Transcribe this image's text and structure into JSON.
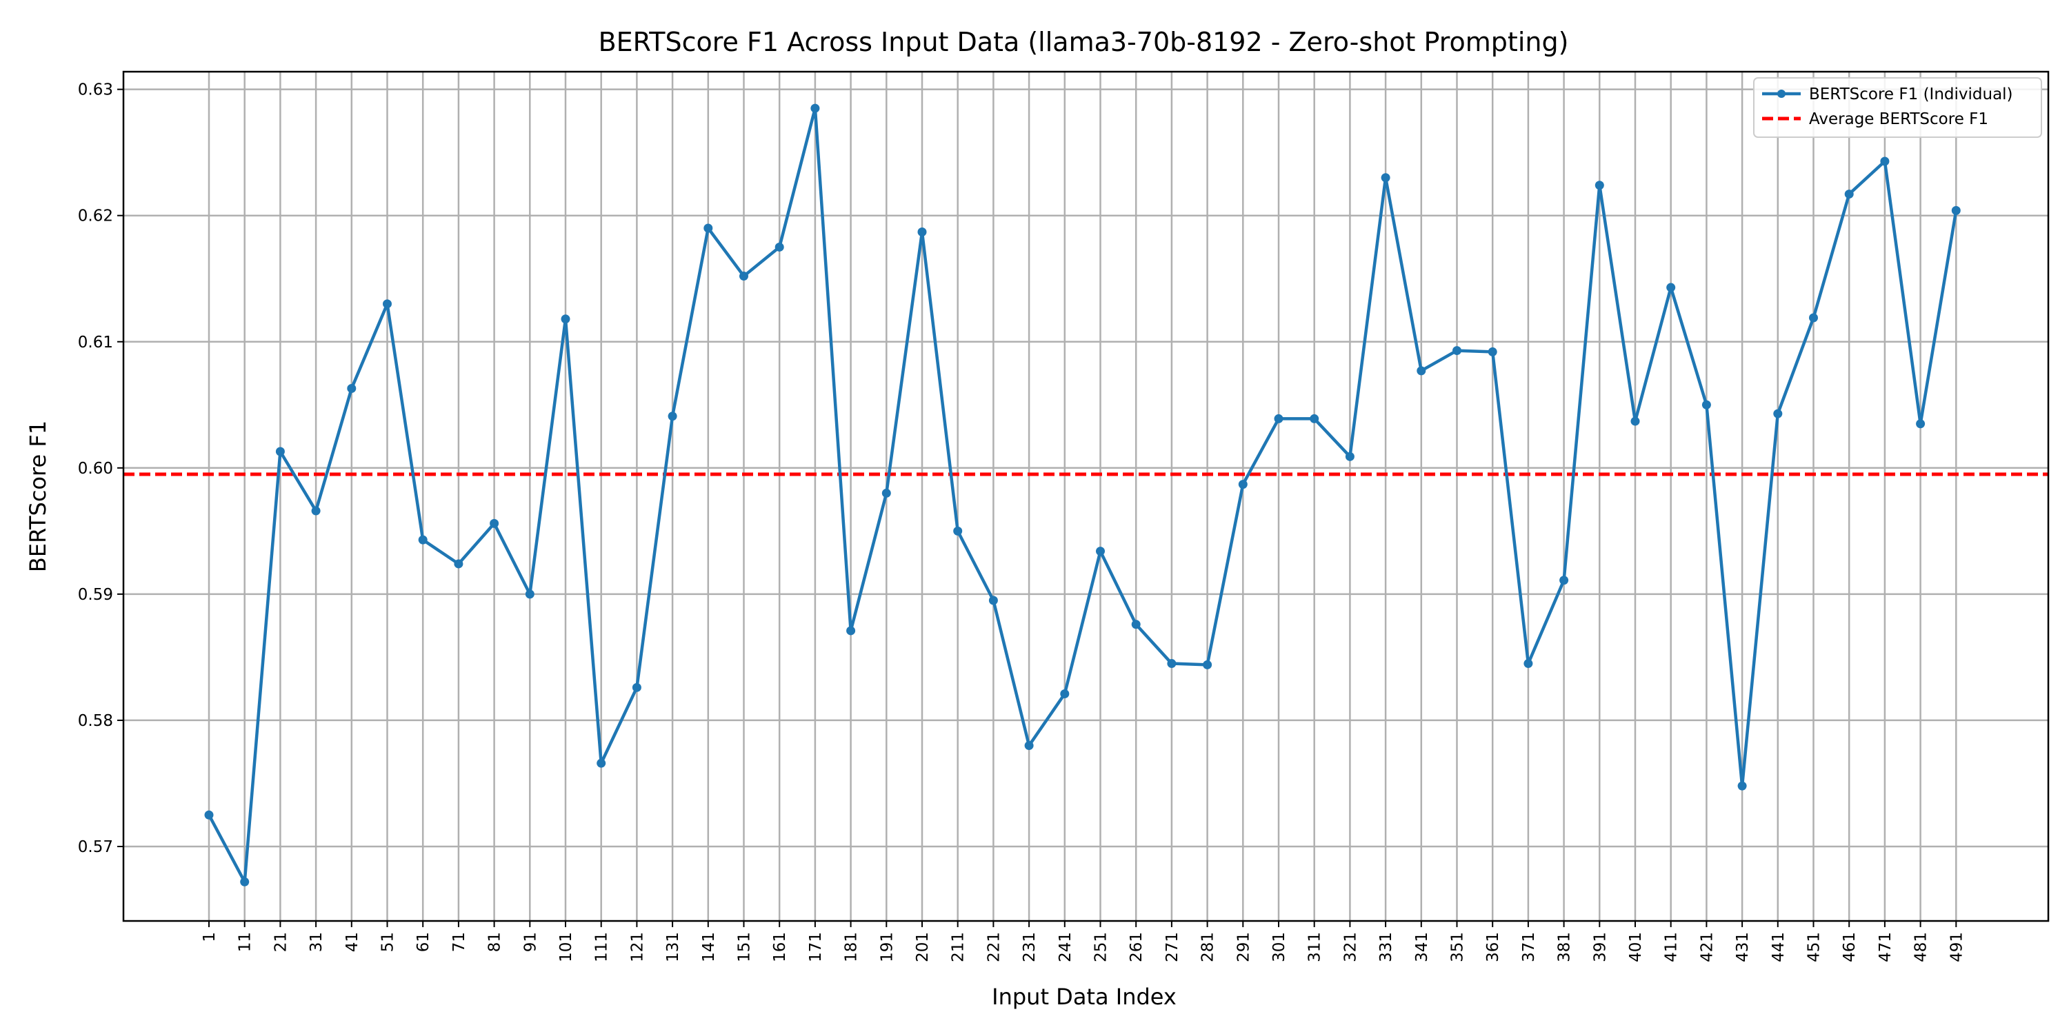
{
  "chart_data": {
    "type": "line",
    "title": "BERTScore F1 Across Input Data (llama3-70b-8192 - Zero-shot Prompting)",
    "xlabel": "Input Data Index",
    "ylabel": "BERTScore F1",
    "categories": [
      "1",
      "11",
      "21",
      "31",
      "41",
      "51",
      "61",
      "71",
      "81",
      "91",
      "101",
      "111",
      "121",
      "131",
      "141",
      "151",
      "161",
      "171",
      "181",
      "191",
      "201",
      "211",
      "221",
      "231",
      "241",
      "251",
      "261",
      "271",
      "281",
      "291",
      "301",
      "311",
      "321",
      "331",
      "341",
      "351",
      "361",
      "371",
      "381",
      "391",
      "401",
      "411",
      "421",
      "431",
      "441",
      "451",
      "461",
      "471",
      "481",
      "491"
    ],
    "series": [
      {
        "name": "BERTScore F1 (Individual)",
        "color": "#1f77b4",
        "values": [
          0.5725,
          0.5672,
          0.6013,
          0.5966,
          0.6063,
          0.613,
          0.5943,
          0.5924,
          0.5956,
          0.59,
          0.6118,
          0.5766,
          0.5826,
          0.6041,
          0.619,
          0.6152,
          0.6175,
          0.6285,
          0.5871,
          0.598,
          0.6187,
          0.595,
          0.5895,
          0.578,
          0.5821,
          0.5934,
          0.5876,
          0.5845,
          0.5844,
          0.5987,
          0.6039,
          0.6039,
          0.6009,
          0.623,
          0.6077,
          0.6093,
          0.6092,
          0.5845,
          0.5911,
          0.6224,
          0.6037,
          0.6143,
          0.605,
          0.5748,
          0.6043,
          0.6119,
          0.6217,
          0.6243,
          0.6035,
          0.6204
        ]
      }
    ],
    "average": {
      "name": "Average BERTScore F1",
      "value": 0.5995,
      "color": "#ff0000"
    },
    "yticks": [
      "0.57",
      "0.58",
      "0.59",
      "0.60",
      "0.61",
      "0.62",
      "0.63"
    ],
    "ylim": [
      0.5641,
      0.6314
    ],
    "grid": true,
    "legend_position": "top-right"
  }
}
